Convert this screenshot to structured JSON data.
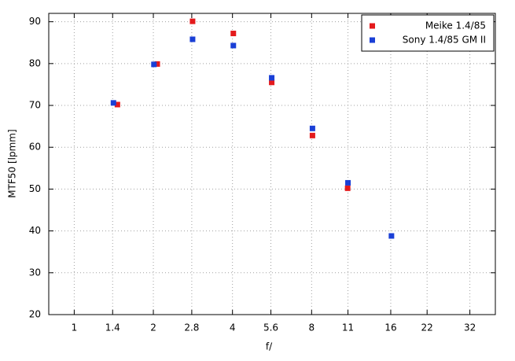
{
  "chart_data": {
    "type": "scatter",
    "x_label": "f/",
    "y_label": "MTF50 [lpmm]",
    "xscale": "log",
    "xlim": [
      0.8,
      40
    ],
    "xticks": [
      1,
      1.4,
      2,
      2.8,
      4,
      5.6,
      8,
      11,
      16,
      22,
      32
    ],
    "ylim": [
      20,
      92
    ],
    "yticks": [
      20,
      30,
      40,
      50,
      60,
      70,
      80,
      90
    ],
    "grid": true,
    "legend": "top-right",
    "series": [
      {
        "name": "Meike 1.4/85",
        "color": "#e41a1c",
        "x": [
          1.46,
          2.07,
          2.82,
          4.03,
          5.64,
          8.06,
          10.97
        ],
        "values": [
          70.2,
          79.9,
          90.1,
          87.2,
          75.5,
          62.8,
          50.2
        ]
      },
      {
        "name": "Sony 1.4/85 GM II",
        "color": "#1a3fd6",
        "x": [
          1.41,
          2.01,
          2.82,
          4.03,
          5.64,
          8.06,
          11.0,
          16.1
        ],
        "values": [
          70.6,
          79.8,
          85.8,
          84.3,
          76.6,
          64.5,
          51.5,
          38.8
        ]
      }
    ]
  }
}
